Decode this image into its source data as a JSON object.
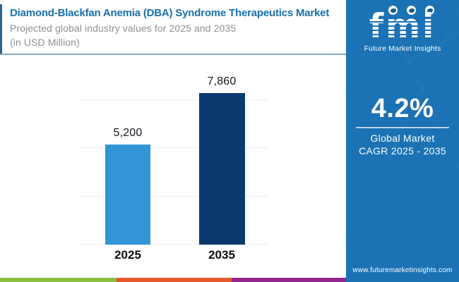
{
  "header": {
    "title": "Diamond-Blackfan Anemia (DBA) Syndrome Therapeutics Market",
    "subtitle_line1": "Projected global industry values for 2025 and 2035",
    "subtitle_line2": "(in USD Million)"
  },
  "chart_data": {
    "type": "bar",
    "categories": [
      "2025",
      "2035"
    ],
    "values": [
      5200,
      7860
    ],
    "value_labels": [
      "5,200",
      "7,860"
    ],
    "series_name": "Projected global industry value (USD Million)",
    "title": "Diamond-Blackfan Anemia (DBA) Syndrome Therapeutics Market",
    "xlabel": "",
    "ylabel": "",
    "unit": "USD Million",
    "ylim": [
      0,
      9580
    ],
    "gridline_values": [
      0,
      2500,
      5000,
      7500
    ],
    "grid": true,
    "legend": false,
    "bar_colors": [
      "#3495d6",
      "#0c3a6e"
    ]
  },
  "sidebar": {
    "logo_word": "fmi",
    "logo_tagline": "Future Market Insights",
    "cagr_value": "4.2%",
    "cagr_label_line1": "Global Market",
    "cagr_label_line2": "CAGR 2025 - 2035",
    "website": "www.futuremarketinsights.com"
  },
  "colors": {
    "title_blue": "#1a70ad",
    "subtitle_gray": "#8f9094",
    "panel_blue": "#1b72b4",
    "bar_2025": "#3495d6",
    "bar_2035": "#0c3a6e",
    "header_divider": "#7ea9ca",
    "footer_stripe_green": "#8abf44",
    "footer_stripe_orange": "#e4592b",
    "footer_stripe_purple": "#94278f"
  }
}
